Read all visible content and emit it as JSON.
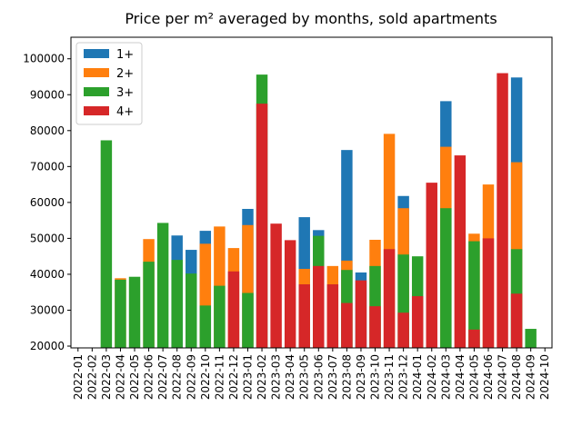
{
  "chart_data": {
    "type": "bar",
    "title": "Price per m² averaged by months, sold apartments",
    "categories": [
      "2022-01",
      "2022-02",
      "2022-03",
      "2022-04",
      "2022-05",
      "2022-06",
      "2022-07",
      "2022-08",
      "2022-09",
      "2022-10",
      "2022-11",
      "2022-12",
      "2023-01",
      "2023-02",
      "2023-03",
      "2023-04",
      "2023-05",
      "2023-06",
      "2023-07",
      "2023-08",
      "2023-09",
      "2023-10",
      "2023-11",
      "2023-12",
      "2024-01",
      "2024-02",
      "2024-03",
      "2024-04",
      "2024-05",
      "2024-06",
      "2024-07",
      "2024-08",
      "2024-09",
      "2024-10"
    ],
    "series": [
      {
        "name": "1+",
        "color": "#1f77b4",
        "values": [
          null,
          null,
          null,
          null,
          null,
          null,
          null,
          50800,
          46800,
          52100,
          null,
          null,
          58200,
          null,
          null,
          null,
          55900,
          52300,
          null,
          74600,
          40500,
          null,
          null,
          61800,
          null,
          null,
          88200,
          null,
          null,
          null,
          null,
          94800,
          null,
          null
        ]
      },
      {
        "name": "2+",
        "color": "#ff7f0e",
        "values": [
          null,
          null,
          null,
          38900,
          null,
          49800,
          null,
          null,
          null,
          48500,
          53300,
          47300,
          53700,
          null,
          null,
          null,
          41500,
          null,
          42300,
          43800,
          null,
          49600,
          79100,
          58400,
          null,
          null,
          75500,
          null,
          51300,
          65000,
          null,
          71200,
          null,
          null
        ]
      },
      {
        "name": "3+",
        "color": "#2ca02c",
        "values": [
          null,
          null,
          77300,
          38500,
          39300,
          43500,
          54300,
          44000,
          40200,
          31300,
          36800,
          null,
          34800,
          95600,
          null,
          null,
          null,
          50700,
          null,
          41200,
          null,
          42300,
          null,
          45500,
          45000,
          null,
          58400,
          null,
          49200,
          null,
          null,
          47000,
          24800,
          null
        ]
      },
      {
        "name": "4+",
        "color": "#d62728",
        "values": [
          null,
          null,
          null,
          null,
          null,
          null,
          null,
          null,
          null,
          null,
          null,
          40800,
          null,
          87500,
          54100,
          49500,
          37200,
          42300,
          37200,
          32000,
          38300,
          31100,
          47000,
          29300,
          33900,
          65500,
          null,
          73100,
          24600,
          50000,
          96000,
          34600,
          null,
          null
        ]
      }
    ],
    "ylim": [
      19500,
      106000
    ],
    "yticks": [
      20000,
      30000,
      40000,
      50000,
      60000,
      70000,
      80000,
      90000,
      100000
    ],
    "legend": "upper left"
  }
}
